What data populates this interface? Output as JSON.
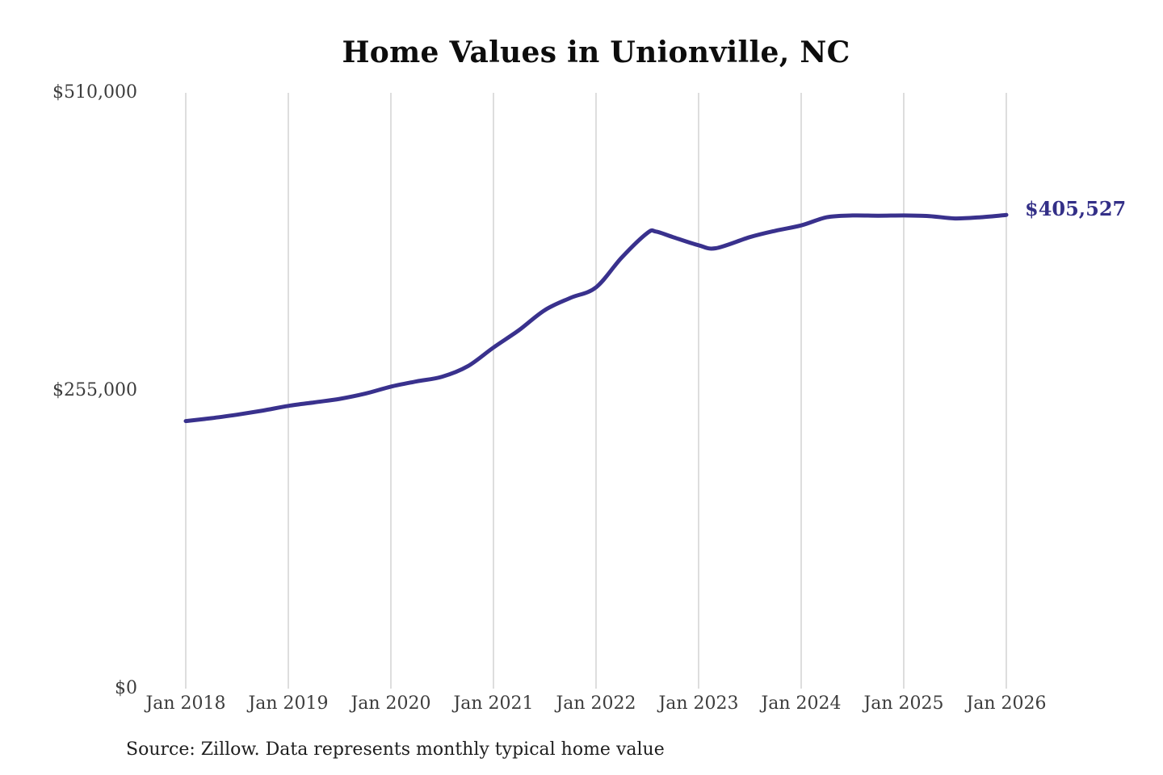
{
  "title": "Home Values in Unionville, NC",
  "source_note": "Source: Zillow. Data represents monthly typical home value",
  "colors": {
    "line": "#39318d",
    "grid": "#cbcbcb",
    "title_text": "#0d0d0d",
    "axis_text": "#3d3d3d",
    "end_label_text": "#332f87",
    "background": "#ffffff"
  },
  "chart_data": {
    "type": "line",
    "title": "Home Values in Unionville, NC",
    "xlabel": "",
    "ylabel": "",
    "ylim": [
      0,
      510000
    ],
    "x_range_months": [
      0,
      96
    ],
    "grid": "vertical-only",
    "legend": "none",
    "y_ticks": [
      {
        "value": 0,
        "label": "$0"
      },
      {
        "value": 255000,
        "label": "$255,000"
      },
      {
        "value": 510000,
        "label": "$510,000"
      }
    ],
    "x_ticks": [
      {
        "month": 0,
        "label": "Jan 2018"
      },
      {
        "month": 12,
        "label": "Jan 2019"
      },
      {
        "month": 24,
        "label": "Jan 2020"
      },
      {
        "month": 36,
        "label": "Jan 2021"
      },
      {
        "month": 48,
        "label": "Jan 2022"
      },
      {
        "month": 60,
        "label": "Jan 2023"
      },
      {
        "month": 72,
        "label": "Jan 2024"
      },
      {
        "month": 84,
        "label": "Jan 2025"
      },
      {
        "month": 96,
        "label": "Jan 2026"
      }
    ],
    "series": [
      {
        "name": "Monthly typical home value",
        "points": [
          [
            0,
            229000
          ],
          [
            3,
            231500
          ],
          [
            6,
            234500
          ],
          [
            9,
            238000
          ],
          [
            12,
            242000
          ],
          [
            15,
            245000
          ],
          [
            18,
            248000
          ],
          [
            21,
            252500
          ],
          [
            24,
            258500
          ],
          [
            27,
            263000
          ],
          [
            30,
            267000
          ],
          [
            33,
            276000
          ],
          [
            36,
            292000
          ],
          [
            39,
            307000
          ],
          [
            42,
            324000
          ],
          [
            45,
            334500
          ],
          [
            48,
            343500
          ],
          [
            51,
            369000
          ],
          [
            54,
            390000
          ],
          [
            55,
            391300
          ],
          [
            57,
            386500
          ],
          [
            60,
            379500
          ],
          [
            62,
            377000
          ],
          [
            66,
            386500
          ],
          [
            69,
            392000
          ],
          [
            72,
            396500
          ],
          [
            75,
            403500
          ],
          [
            78,
            405000
          ],
          [
            81,
            404800
          ],
          [
            84,
            405000
          ],
          [
            87,
            404500
          ],
          [
            90,
            402500
          ],
          [
            93,
            403500
          ],
          [
            96,
            405527
          ]
        ]
      }
    ],
    "end_annotation": {
      "label": "$405,527",
      "value": 405527
    }
  }
}
